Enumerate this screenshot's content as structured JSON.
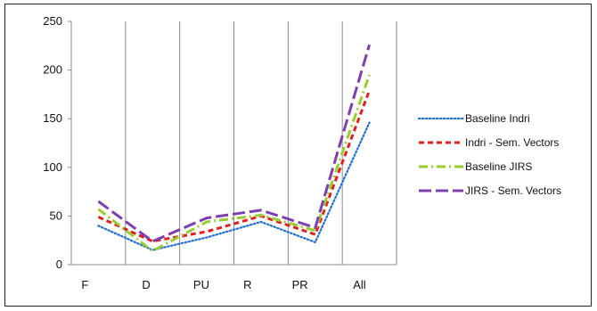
{
  "chart_data": {
    "type": "line",
    "categories": [
      "F",
      "D",
      "PU",
      "R",
      "PR",
      "All"
    ],
    "ylim": [
      0,
      250
    ],
    "yticks": [
      0,
      50,
      100,
      150,
      200,
      250
    ],
    "grid": "vertical",
    "legend_position": "right",
    "series": [
      {
        "name": "Baseline Indri",
        "values": [
          40,
          15,
          28,
          44,
          23,
          146
        ],
        "color": "#1f6fd6",
        "style": "dotted"
      },
      {
        "name": "Indri - Sem. Vectors",
        "values": [
          49,
          24,
          34,
          50,
          31,
          179
        ],
        "color": "#e0201c",
        "style": "dashed"
      },
      {
        "name": "Baseline JIRS",
        "values": [
          57,
          14,
          44,
          51,
          35,
          195
        ],
        "color": "#9acd32",
        "style": "dashdot"
      },
      {
        "name": "JIRS - Sem. Vectors",
        "values": [
          65,
          24,
          48,
          56,
          38,
          226
        ],
        "color": "#7e3fae",
        "style": "longdash"
      }
    ]
  }
}
